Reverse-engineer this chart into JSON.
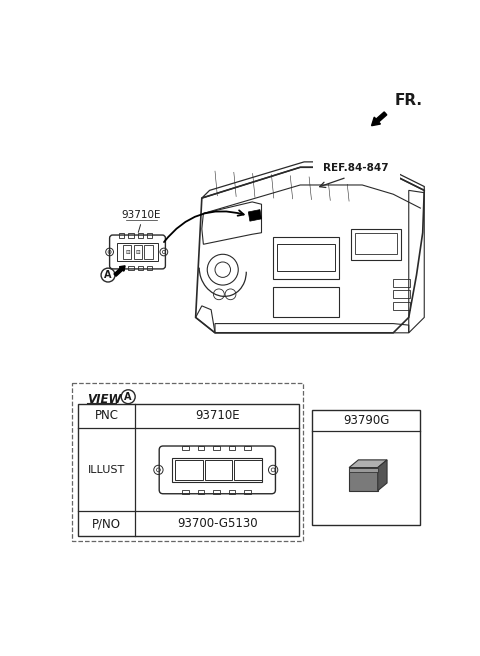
{
  "bg_color": "#ffffff",
  "fr_label": "FR.",
  "ref_label": "REF.84-847",
  "part_label_93710E": "93710E",
  "part_label_A": "A",
  "pnc_label": "PNC",
  "pnc_value": "93710E",
  "illust_label": "ILLUST",
  "pno_label": "P/NO",
  "pno_value": "93700-G5130",
  "part2_label": "93790G",
  "lc": "#2a2a2a",
  "tc": "#1a1a1a",
  "gray_dark": "#555555",
  "gray_med": "#888888",
  "gray_light": "#aaaaaa"
}
